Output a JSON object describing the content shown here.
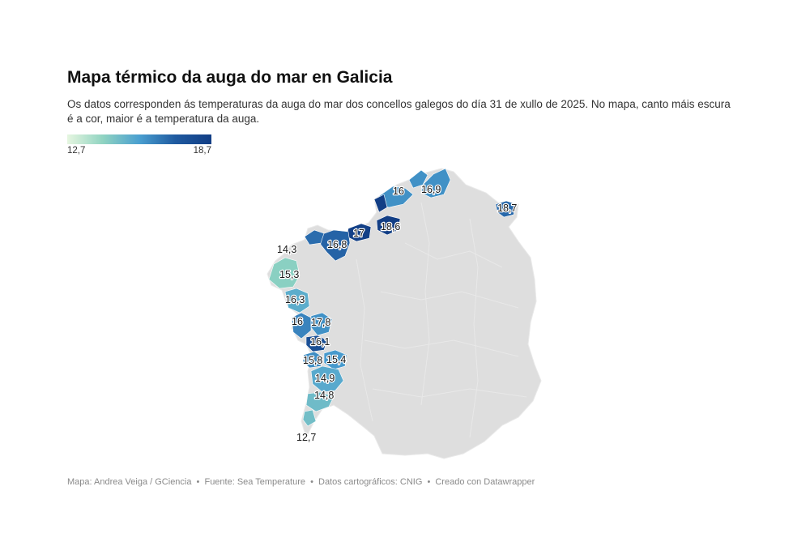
{
  "title": "Mapa térmico da auga do mar en Galicia",
  "subtitle": "Os datos corresponden ás temperaturas da auga do mar dos concellos galegos do día 31 de xullo de 2025. No mapa, canto máis escura é a cor, maior é a temperatura da auga.",
  "legend": {
    "min_label": "12,7",
    "max_label": "18,7",
    "color_stops": [
      "#e6f6e0",
      "#8fd3c1",
      "#4a9fd0",
      "#1f5aa0",
      "#123e85"
    ]
  },
  "colors": {
    "land": "#dedede",
    "land_border": "#e9e9e9"
  },
  "map": {
    "region": "Galicia",
    "points": [
      {
        "id": "p1",
        "label": "16",
        "value": 16.0
      },
      {
        "id": "p2",
        "label": "16,9",
        "value": 16.9
      },
      {
        "id": "p3",
        "label": "18,7",
        "value": 18.7
      },
      {
        "id": "p4",
        "label": "18,6",
        "value": 18.6
      },
      {
        "id": "p5",
        "label": "17",
        "value": 17.0
      },
      {
        "id": "p6",
        "label": "16,8",
        "value": 16.8
      },
      {
        "id": "p7",
        "label": "14,3",
        "value": 14.3
      },
      {
        "id": "p8",
        "label": "15,3",
        "value": 15.3
      },
      {
        "id": "p9",
        "label": "16,3",
        "value": 16.3
      },
      {
        "id": "p10",
        "label": "16",
        "value": 16.0
      },
      {
        "id": "p11",
        "label": "17,8",
        "value": 17.8
      },
      {
        "id": "p12",
        "label": "16,1",
        "value": 16.1
      },
      {
        "id": "p13",
        "label": "15,8",
        "value": 15.8
      },
      {
        "id": "p14",
        "label": "15,4",
        "value": 15.4
      },
      {
        "id": "p15",
        "label": "14,9",
        "value": 14.9
      },
      {
        "id": "p16",
        "label": "14,8",
        "value": 14.8
      },
      {
        "id": "p17",
        "label": "12,7",
        "value": 12.7
      }
    ]
  },
  "footer": {
    "map_credit": "Mapa: Andrea Veiga / GCiencia",
    "source": "Fuente: Sea Temperature",
    "geo_data": "Datos cartográficos: CNIG",
    "tool": "Creado con Datawrapper"
  }
}
